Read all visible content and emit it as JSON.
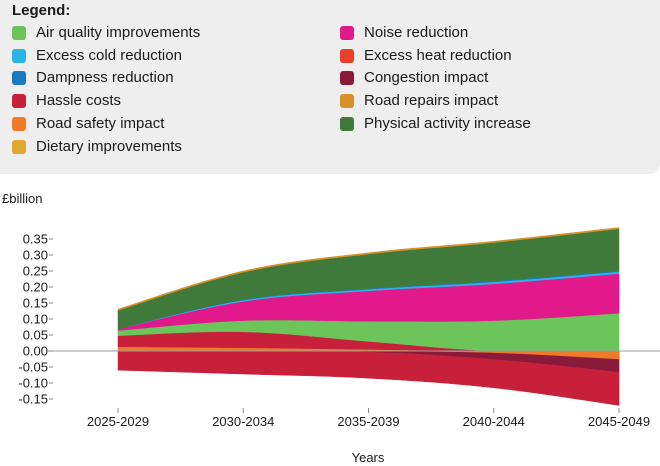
{
  "legend": {
    "title": "Legend:",
    "items": [
      {
        "label": "Air quality improvements",
        "color": "#6cc55a"
      },
      {
        "label": "Excess cold reduction",
        "color": "#29b5e8"
      },
      {
        "label": "Dampness reduction",
        "color": "#1a7ac0"
      },
      {
        "label": "Hassle costs",
        "color": "#c8203a"
      },
      {
        "label": "Road safety impact",
        "color": "#f07a2a"
      },
      {
        "label": "Dietary improvements",
        "color": "#e0a830"
      },
      {
        "label": "Noise reduction",
        "color": "#e2198a"
      },
      {
        "label": "Excess heat reduction",
        "color": "#e8402a"
      },
      {
        "label": "Congestion impact",
        "color": "#8a1a3a"
      },
      {
        "label": "Road repairs impact",
        "color": "#d89028"
      },
      {
        "label": "Physical activity increase",
        "color": "#3f7a3a"
      }
    ]
  },
  "chart_data": {
    "type": "area",
    "stacked": true,
    "categories": [
      "2025-2029",
      "2030-2034",
      "2035-2039",
      "2040-2044",
      "2045-2049"
    ],
    "xlabel": "Years",
    "ylabel": "£billion",
    "ylim": [
      -0.17,
      0.38
    ],
    "yticks": [
      "0.35",
      "0.30",
      "0.25",
      "0.20",
      "0.15",
      "0.10",
      "0.05",
      "0.00",
      "-0.05",
      "-0.10",
      "-0.15"
    ],
    "positive_series": [
      {
        "name": "Dietary improvements",
        "values": [
          0.0,
          0.0,
          0.0,
          0.0,
          0.0
        ]
      },
      {
        "name": "Road safety impact",
        "values": [
          0.013,
          0.01,
          0.005,
          0.0,
          0.0
        ]
      },
      {
        "name": "Hassle costs",
        "values": [
          0.035,
          0.05,
          0.025,
          0.0,
          0.0
        ]
      },
      {
        "name": "Air quality improvements",
        "values": [
          0.016,
          0.035,
          0.063,
          0.095,
          0.118
        ]
      },
      {
        "name": "Noise reduction",
        "values": [
          0.005,
          0.06,
          0.095,
          0.115,
          0.124
        ]
      },
      {
        "name": "Excess cold reduction",
        "values": [
          0.0,
          0.004,
          0.005,
          0.006,
          0.006
        ]
      },
      {
        "name": "Dampness reduction",
        "values": [
          0.0,
          0.002,
          0.002,
          0.003,
          0.003
        ]
      },
      {
        "name": "Physical activity increase",
        "values": [
          0.058,
          0.085,
          0.108,
          0.12,
          0.131
        ]
      },
      {
        "name": "Road repairs impact",
        "values": [
          0.004,
          0.004,
          0.004,
          0.004,
          0.004
        ]
      }
    ],
    "negative_series": [
      {
        "name": "Hassle costs",
        "values": [
          -0.06,
          -0.072,
          -0.085,
          -0.115,
          -0.17
        ]
      },
      {
        "name": "Congestion impact",
        "values": [
          0.0,
          0.0,
          -0.002,
          -0.025,
          -0.065
        ]
      },
      {
        "name": "Road safety impact",
        "values": [
          0.0,
          0.0,
          0.0,
          -0.005,
          -0.025
        ]
      }
    ]
  }
}
